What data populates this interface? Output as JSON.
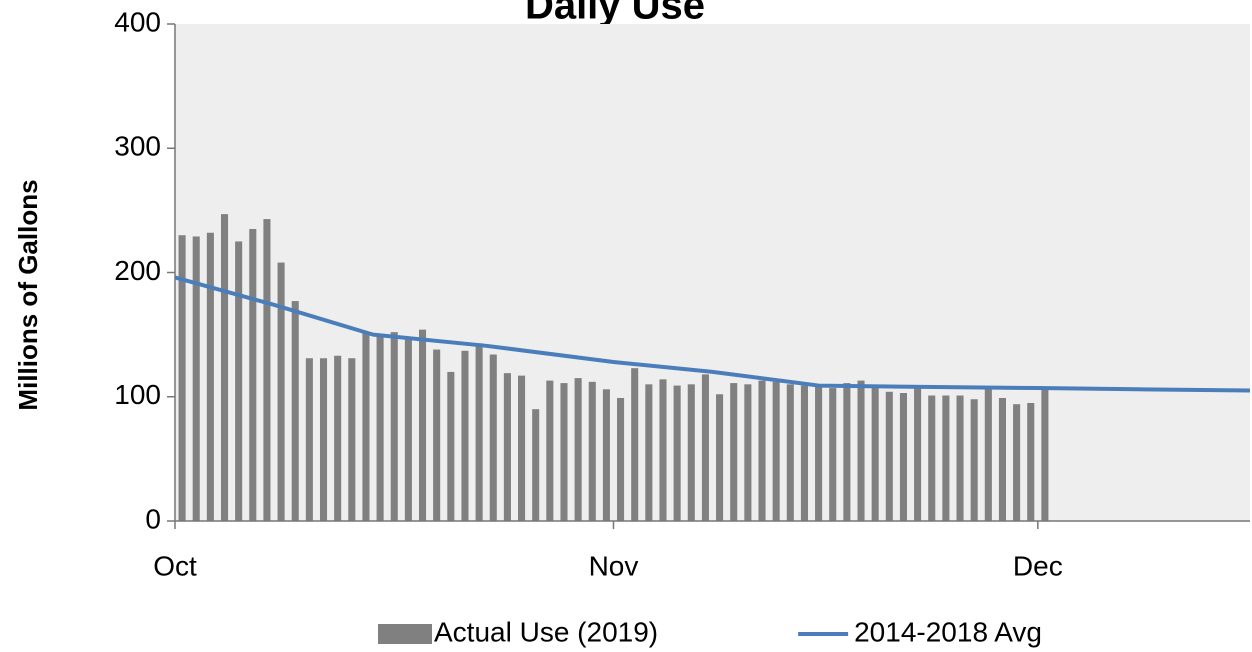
{
  "chart_data": {
    "type": "bar-line",
    "title": "Daily Use",
    "y_label": "Millions of Gallons",
    "xlim": [
      0,
      76
    ],
    "xticks": [
      {
        "value": 0,
        "label": "Oct"
      },
      {
        "value": 31,
        "label": "Nov"
      },
      {
        "value": 61,
        "label": "Dec"
      }
    ],
    "ylim": [
      0,
      400
    ],
    "yticks": [
      0,
      100,
      200,
      300,
      400
    ],
    "grid": false,
    "legend": "bottom",
    "series": [
      {
        "name": "Actual Use (2019)",
        "type": "bar",
        "color": "#808080",
        "x": [
          0.5,
          1.5,
          2.5,
          3.5,
          4.5,
          5.5,
          6.5,
          7.5,
          8.5,
          9.5,
          10.5,
          11.5,
          12.5,
          13.5,
          14.5,
          15.5,
          16.5,
          17.5,
          18.5,
          19.5,
          20.5,
          21.5,
          22.5,
          23.5,
          24.5,
          25.5,
          26.5,
          27.5,
          28.5,
          29.5,
          30.5,
          31.5,
          32.5,
          33.5,
          34.5,
          35.5,
          36.5,
          37.5,
          38.5,
          39.5,
          40.5,
          41.5,
          42.5,
          43.5,
          44.5,
          45.5,
          46.5,
          47.5,
          48.5,
          49.5,
          50.5,
          51.5,
          52.5,
          53.5,
          54.5,
          55.5,
          56.5,
          57.5,
          58.5,
          59.5,
          60.5,
          61.5
        ],
        "values": [
          230,
          229,
          232,
          247,
          225,
          235,
          243,
          208,
          177,
          131,
          131,
          133,
          131,
          152,
          150,
          152,
          148,
          154,
          138,
          120,
          137,
          143,
          134,
          119,
          117,
          90,
          113,
          111,
          115,
          112,
          106,
          99,
          123,
          110,
          114,
          109,
          110,
          118,
          102,
          111,
          110,
          113,
          112,
          110,
          109,
          110,
          107,
          111,
          113,
          109,
          104,
          103,
          109,
          101,
          101,
          101,
          98,
          106,
          99,
          94,
          95,
          107
        ]
      },
      {
        "name": "2014-2018 Avg",
        "type": "line",
        "color": "#4a7ebb",
        "x": [
          0,
          7,
          14,
          22,
          31,
          38,
          45.5,
          52,
          61,
          68,
          76
        ],
        "values": [
          196,
          174,
          150,
          141,
          128,
          120,
          109,
          108,
          107,
          106,
          105
        ]
      }
    ]
  }
}
